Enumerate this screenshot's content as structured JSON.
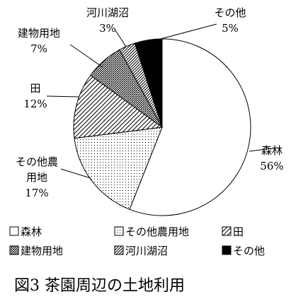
{
  "chart_data": {
    "type": "pie",
    "title": "図3 茶園周辺の土地利用",
    "start_angle_deg": 0,
    "direction": "clockwise",
    "legend_position": "bottom",
    "slices": [
      {
        "name": "森林",
        "value": 56,
        "value_label": "56%",
        "label_lines": [
          "森林",
          "56%"
        ],
        "pattern": "white"
      },
      {
        "name": "その他農用地",
        "value": 17,
        "value_label": "17%",
        "label_lines": [
          "その他農",
          "用地",
          "17%"
        ],
        "pattern": "dots"
      },
      {
        "name": "田",
        "value": 12,
        "value_label": "12%",
        "label_lines": [
          "田",
          "12%"
        ],
        "pattern": "diag-sparse"
      },
      {
        "name": "建物用地",
        "value": 7,
        "value_label": "7%",
        "label_lines": [
          "建物用地",
          "7%"
        ],
        "pattern": "diag-dense"
      },
      {
        "name": "河川湖沼",
        "value": 3,
        "value_label": "3%",
        "label_lines": [
          "河川湖沼",
          "3%"
        ],
        "pattern": "diag-medium"
      },
      {
        "name": "その他",
        "value": 5,
        "value_label": "5%",
        "label_lines": [
          "その他",
          "5%"
        ],
        "pattern": "black"
      }
    ]
  }
}
